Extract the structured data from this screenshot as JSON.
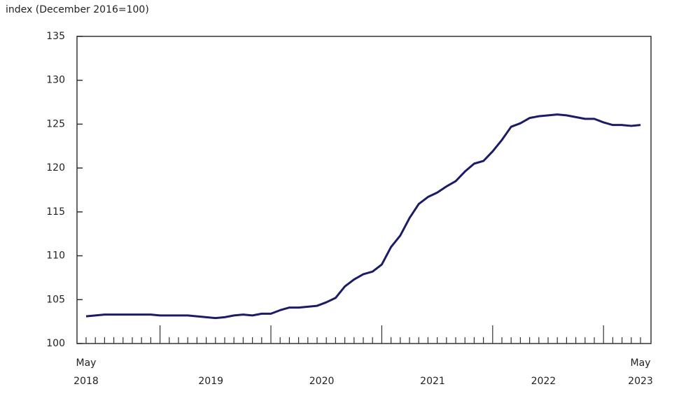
{
  "chart_data": {
    "type": "line",
    "y_axis_label": "index (December 2016=100)",
    "categories": [
      "May",
      null,
      null,
      null,
      null,
      null,
      null,
      null,
      null,
      null,
      null,
      null,
      null,
      null,
      null,
      null,
      null,
      null,
      null,
      null,
      null,
      null,
      null,
      null,
      null,
      null,
      null,
      null,
      null,
      null,
      null,
      null,
      null,
      null,
      null,
      null,
      null,
      null,
      null,
      null,
      null,
      null,
      null,
      null,
      null,
      null,
      null,
      null,
      null,
      null,
      null,
      null,
      null,
      null,
      null,
      null,
      null,
      null,
      null,
      null,
      "May"
    ],
    "year_labels": [
      "2018",
      "2019",
      "2020",
      "2021",
      "2022",
      "2023"
    ],
    "series": [
      {
        "color": "#1c1c66",
        "values": [
          103.1,
          103.2,
          103.3,
          103.3,
          103.3,
          103.3,
          103.3,
          103.3,
          103.2,
          103.2,
          103.2,
          103.2,
          103.1,
          103.0,
          102.9,
          103.0,
          103.2,
          103.3,
          103.2,
          103.4,
          103.4,
          103.8,
          104.1,
          104.1,
          104.2,
          104.3,
          104.7,
          105.2,
          106.5,
          107.3,
          107.9,
          108.2,
          109.0,
          111.0,
          112.3,
          114.3,
          115.9,
          116.7,
          117.2,
          117.9,
          118.5,
          119.6,
          120.5,
          120.8,
          121.9,
          123.2,
          124.7,
          125.1,
          125.7,
          125.9,
          126.0,
          126.1,
          126.0,
          125.8,
          125.6,
          125.6,
          125.2,
          124.9,
          124.9,
          124.8,
          124.9
        ]
      }
    ],
    "ylim": [
      100,
      135
    ],
    "yticks": [
      100,
      105,
      110,
      115,
      120,
      125,
      130,
      135
    ]
  }
}
